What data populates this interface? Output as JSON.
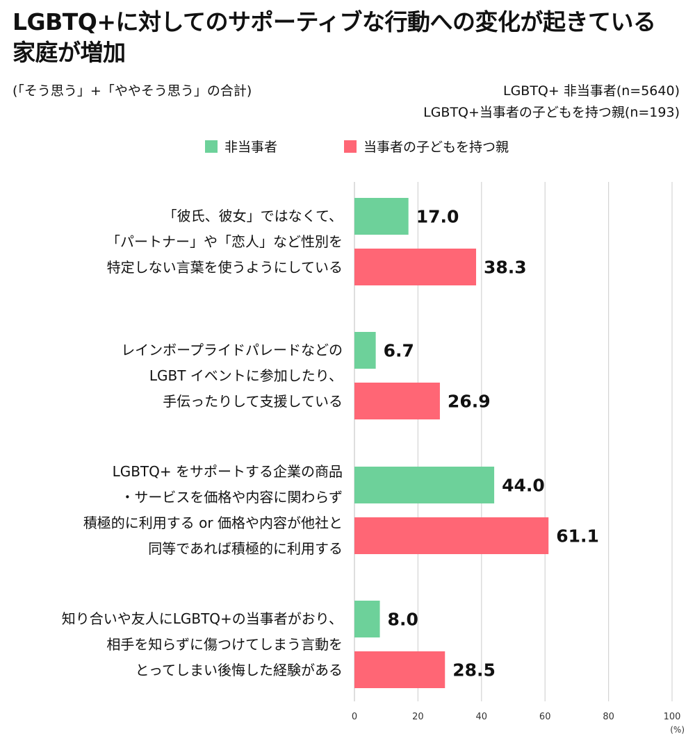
{
  "title_line1": "LGBTQ+に対してのサポーティブな行動への変化が起きている",
  "title_line2": "家庭が増加",
  "subtitle": "(「そう思う」+「ややそう思う」の合計)",
  "sample_lines": [
    "LGBTQ+ 非当事者(n=5640)",
    "LGBTQ+当事者の子どもを持つ親(n=193)"
  ],
  "colors": {
    "non_party": "#6dd19a",
    "parent": "#ff6675",
    "grid": "#d4d4d4"
  },
  "chart_data": {
    "type": "bar",
    "orientation": "horizontal",
    "title": "LGBTQ+に対してのサポーティブな行動への変化が起きている家庭が増加",
    "unit_label": "(%)",
    "xlim": [
      0,
      100
    ],
    "ticks": [
      0,
      20,
      40,
      60,
      80,
      100
    ],
    "grid": true,
    "legend_position": "top-center",
    "categories": [
      [
        "「彼氏、彼女」ではなくて、",
        "「パートナー」や「恋人」など性別を",
        "特定しない言葉を使うようにしている"
      ],
      [
        "レインボープライドパレードなどの",
        "LGBT イベントに参加したり、",
        "手伝ったりして支援している"
      ],
      [
        "LGBTQ+ をサポートする企業の商品",
        "・サービスを価格や内容に関わらず",
        "積極的に利用する or 価格や内容が他社と",
        "同等であれば積極的に利用する"
      ],
      [
        "知り合いや友人にLGBTQ+の当事者がおり、",
        "相手を知らずに傷つけてしまう言動を",
        "とってしまい後悔した経験がある"
      ]
    ],
    "series": [
      {
        "name": "非当事者",
        "values": [
          17.0,
          6.7,
          44.0,
          8.0
        ],
        "labels": [
          "17.0",
          "6.7",
          "44.0",
          "8.0"
        ]
      },
      {
        "name": "当事者の子どもを持つ親",
        "values": [
          38.3,
          26.9,
          61.1,
          28.5
        ],
        "labels": [
          "38.3",
          "26.9",
          "61.1",
          "28.5"
        ]
      }
    ]
  }
}
